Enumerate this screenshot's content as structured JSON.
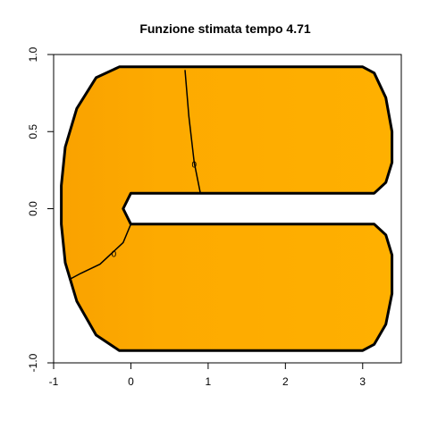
{
  "chart_data": {
    "type": "contour",
    "title": "Funzione stimata tempo 4.71",
    "xlabel": "",
    "ylabel": "",
    "xlim": [
      -1,
      3.5
    ],
    "ylim": [
      -1,
      1
    ],
    "x_ticks": [
      -1,
      0,
      1,
      2,
      3
    ],
    "y_ticks": [
      -1,
      0,
      0.5,
      1
    ],
    "x_tick_labels": [
      "-1",
      "0",
      "1",
      "2",
      "3"
    ],
    "y_tick_labels": [
      "-1.0",
      "0.0",
      "0.5",
      "1.0"
    ],
    "domain": "horseshoe",
    "fill_colors": {
      "light": "#ffb000",
      "mid": "#fdaa00",
      "dark": "#f9a200"
    },
    "contours": [
      {
        "level": 0,
        "label": "0",
        "points": [
          [
            0.7,
            0.9
          ],
          [
            0.75,
            0.6
          ],
          [
            0.82,
            0.3
          ],
          [
            0.9,
            0.1
          ]
        ],
        "label_at": [
          0.82,
          0.29
        ]
      },
      {
        "level": 0,
        "label": "0",
        "points": [
          [
            0.0,
            -0.1
          ],
          [
            -0.1,
            -0.22
          ],
          [
            -0.4,
            -0.36
          ],
          [
            -0.65,
            -0.42
          ],
          [
            -0.8,
            -0.46
          ]
        ],
        "label_at": [
          -0.22,
          -0.29
        ]
      }
    ]
  }
}
